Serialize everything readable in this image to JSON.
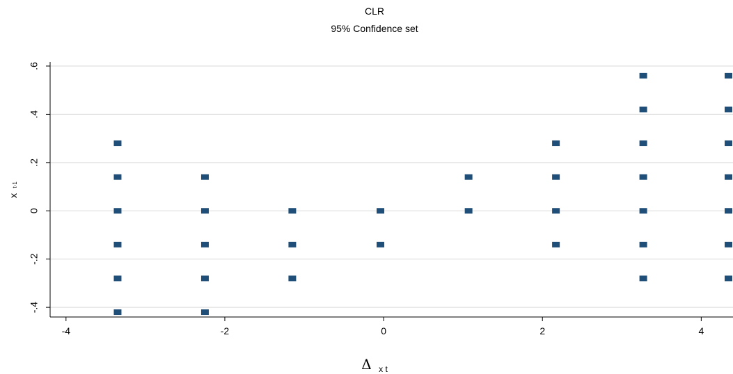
{
  "chart_data": {
    "type": "scatter",
    "title": "CLR",
    "subtitle": "95%  Confidence set",
    "xlabel": {
      "symbol": "Δ",
      "sub": "x t"
    },
    "ylabel": {
      "main": "x",
      "sub": "t-1"
    },
    "xlim": [
      -4.2,
      4.4
    ],
    "ylim": [
      -0.44,
      0.6
    ],
    "xticks": [
      -4,
      -2,
      0,
      2,
      4
    ],
    "xtick_labels": [
      "-4",
      "-2",
      "0",
      "2",
      "4"
    ],
    "yticks": [
      -0.4,
      -0.2,
      0,
      0.2,
      0.4,
      0.6
    ],
    "ytick_labels": [
      "-.4",
      "-.2",
      "0",
      ".2",
      ".4",
      ".6"
    ],
    "grid": true,
    "marker_color": "#1f4e79",
    "points": [
      {
        "x": -3.35,
        "y": 0.28
      },
      {
        "x": -3.35,
        "y": 0.14
      },
      {
        "x": -3.35,
        "y": 0
      },
      {
        "x": -3.35,
        "y": -0.14
      },
      {
        "x": -3.35,
        "y": -0.28
      },
      {
        "x": -3.35,
        "y": -0.42
      },
      {
        "x": -2.25,
        "y": 0.14
      },
      {
        "x": -2.25,
        "y": 0
      },
      {
        "x": -2.25,
        "y": -0.14
      },
      {
        "x": -2.25,
        "y": -0.28
      },
      {
        "x": -2.25,
        "y": -0.42
      },
      {
        "x": -1.15,
        "y": 0
      },
      {
        "x": -1.15,
        "y": -0.14
      },
      {
        "x": -1.15,
        "y": -0.28
      },
      {
        "x": -0.04,
        "y": 0
      },
      {
        "x": -0.04,
        "y": -0.14
      },
      {
        "x": 1.07,
        "y": 0.14
      },
      {
        "x": 1.07,
        "y": 0
      },
      {
        "x": 2.17,
        "y": 0.28
      },
      {
        "x": 2.17,
        "y": 0.14
      },
      {
        "x": 2.17,
        "y": 0
      },
      {
        "x": 2.17,
        "y": -0.14
      },
      {
        "x": 3.27,
        "y": 0.56
      },
      {
        "x": 3.27,
        "y": 0.42
      },
      {
        "x": 3.27,
        "y": 0.28
      },
      {
        "x": 3.27,
        "y": 0.14
      },
      {
        "x": 3.27,
        "y": 0
      },
      {
        "x": 3.27,
        "y": -0.14
      },
      {
        "x": 3.27,
        "y": -0.28
      },
      {
        "x": 4.37,
        "y": 0.56
      },
      {
        "x": 4.37,
        "y": 0.42
      },
      {
        "x": 4.37,
        "y": 0.28
      },
      {
        "x": 4.37,
        "y": 0.14
      },
      {
        "x": 4.37,
        "y": 0
      },
      {
        "x": 4.37,
        "y": -0.14
      },
      {
        "x": 4.37,
        "y": -0.28
      }
    ]
  }
}
